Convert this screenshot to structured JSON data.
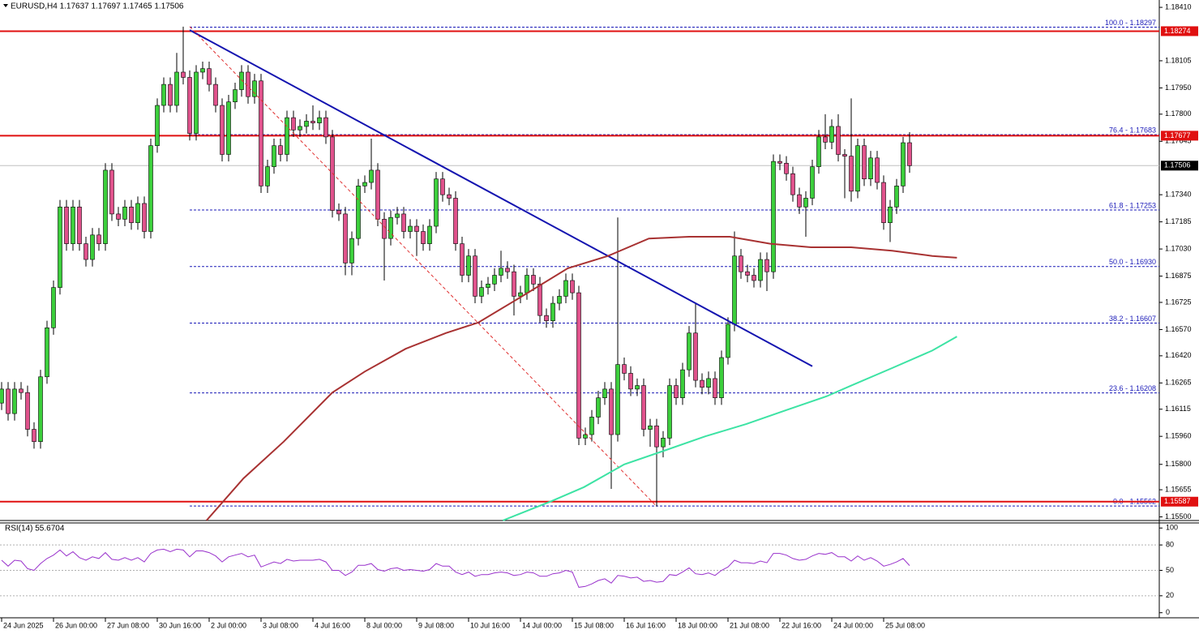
{
  "chart_data": [
    {
      "type": "candlestick",
      "title": "EURUSD,H4  1.17637 1.17697 1.17465 1.17506",
      "open": [
        1.1615,
        1.1623,
        1.1609,
        1.1623,
        1.1621,
        1.16,
        1.1593,
        1.163,
        1.1658,
        1.1681,
        1.1727,
        1.1706,
        1.1727,
        1.1706,
        1.1697,
        1.1711,
        1.1706,
        1.1748,
        1.1723,
        1.172,
        1.1727,
        1.1718,
        1.1729,
        1.1713,
        1.1762,
        1.1785,
        1.1797,
        1.1785,
        1.1804,
        1.1801,
        1.1769,
        1.1804,
        1.1806,
        1.1797,
        1.1785,
        1.1757,
        1.1787,
        1.1794,
        1.1804,
        1.179,
        1.1799,
        1.1739,
        1.175,
        1.1762,
        1.1757,
        1.1778,
        1.1771,
        1.1773,
        1.1776,
        1.1775,
        1.1778,
        1.1767,
        1.1725,
        1.1723,
        1.1695,
        1.1709,
        1.1739,
        1.1741,
        1.1748,
        1.172,
        1.1709,
        1.1721,
        1.1723,
        1.1713,
        1.1716,
        1.1713,
        1.1706,
        1.1716,
        1.1743,
        1.1734,
        1.1732,
        1.1706,
        1.1688,
        1.1699,
        1.1676,
        1.1681,
        1.1683,
        1.1688,
        1.1692,
        1.169,
        1.1676,
        1.1678,
        1.1688,
        1.1683,
        1.1665,
        1.1662,
        1.1672,
        1.1676,
        1.1685,
        1.1678,
        1.1595,
        1.1597,
        1.1607,
        1.1618,
        1.1623,
        1.1597,
        1.1637,
        1.1632,
        1.1623,
        1.1625,
        1.16,
        1.1602,
        1.159,
        1.1595,
        1.1625,
        1.1618,
        1.1634,
        1.1655,
        1.1628,
        1.1624,
        1.1629,
        1.1618,
        1.1641,
        1.166,
        1.1699,
        1.169,
        1.1688,
        1.1685,
        1.1697,
        1.169,
        1.1753,
        1.1752,
        1.1746,
        1.1734,
        1.1727,
        1.1732,
        1.175,
        1.1767,
        1.1764,
        1.1773,
        1.1757,
        1.1756,
        1.1736,
        1.1762,
        1.1743,
        1.1755,
        1.1741,
        1.1718,
        1.1727,
        1.1739,
        1.17637
      ],
      "high": [
        1.1627,
        1.1627,
        1.1627,
        1.1627,
        1.1625,
        1.1604,
        1.1634,
        1.1662,
        1.1685,
        1.1731,
        1.1731,
        1.1731,
        1.1731,
        1.171,
        1.1715,
        1.1715,
        1.1752,
        1.1752,
        1.1727,
        1.1731,
        1.1731,
        1.1733,
        1.1733,
        1.1766,
        1.1789,
        1.1801,
        1.1801,
        1.1815,
        1.183,
        1.1805,
        1.1808,
        1.181,
        1.181,
        1.1801,
        1.1789,
        1.1791,
        1.1798,
        1.1808,
        1.1808,
        1.1803,
        1.1803,
        1.1754,
        1.1766,
        1.1766,
        1.1782,
        1.1782,
        1.1777,
        1.178,
        1.1785,
        1.1782,
        1.1782,
        1.1771,
        1.1729,
        1.1727,
        1.1713,
        1.1743,
        1.1745,
        1.1766,
        1.1752,
        1.1724,
        1.1725,
        1.1727,
        1.1727,
        1.172,
        1.172,
        1.1717,
        1.172,
        1.1747,
        1.1747,
        1.1738,
        1.1736,
        1.171,
        1.1703,
        1.1703,
        1.1685,
        1.1687,
        1.1692,
        1.1702,
        1.1696,
        1.1694,
        1.1682,
        1.1692,
        1.1692,
        1.1687,
        1.1669,
        1.1676,
        1.168,
        1.1689,
        1.1689,
        1.1682,
        1.1601,
        1.1611,
        1.1622,
        1.1627,
        1.1627,
        1.1721,
        1.1641,
        1.1636,
        1.1629,
        1.1629,
        1.1606,
        1.1606,
        1.1599,
        1.1629,
        1.1629,
        1.1638,
        1.1659,
        1.1672,
        1.1632,
        1.1633,
        1.1633,
        1.1645,
        1.1664,
        1.1713,
        1.1703,
        1.1694,
        1.1692,
        1.1701,
        1.1701,
        1.1757,
        1.1757,
        1.1756,
        1.175,
        1.1738,
        1.1736,
        1.1754,
        1.1771,
        1.178,
        1.1777,
        1.178,
        1.176,
        1.1789,
        1.1766,
        1.1766,
        1.1759,
        1.1759,
        1.1745,
        1.1731,
        1.1743,
        1.1767,
        1.17697
      ],
      "low": [
        1.1611,
        1.1605,
        1.1605,
        1.1617,
        1.1596,
        1.1589,
        1.1589,
        1.1626,
        1.1654,
        1.1677,
        1.1702,
        1.1702,
        1.1702,
        1.1693,
        1.1693,
        1.1702,
        1.1702,
        1.1719,
        1.1716,
        1.1716,
        1.1714,
        1.1714,
        1.1709,
        1.1709,
        1.1758,
        1.1781,
        1.1781,
        1.1781,
        1.1797,
        1.1765,
        1.1765,
        1.18,
        1.1793,
        1.1781,
        1.1753,
        1.1753,
        1.1783,
        1.179,
        1.1786,
        1.1786,
        1.1735,
        1.1735,
        1.1746,
        1.1753,
        1.1753,
        1.1767,
        1.1767,
        1.1769,
        1.1771,
        1.1771,
        1.1763,
        1.1721,
        1.1719,
        1.1688,
        1.1688,
        1.1705,
        1.1735,
        1.1737,
        1.1716,
        1.1685,
        1.1705,
        1.1717,
        1.1709,
        1.1709,
        1.1699,
        1.1702,
        1.1702,
        1.1712,
        1.173,
        1.1728,
        1.1702,
        1.1684,
        1.1684,
        1.1672,
        1.1672,
        1.1677,
        1.1679,
        1.1684,
        1.1686,
        1.1665,
        1.1672,
        1.1674,
        1.1679,
        1.1661,
        1.1658,
        1.1658,
        1.1668,
        1.1672,
        1.1674,
        1.1591,
        1.1591,
        1.1593,
        1.1603,
        1.1614,
        1.1566,
        1.1593,
        1.1628,
        1.1619,
        1.1619,
        1.1596,
        1.159,
        1.1556,
        1.1584,
        1.1591,
        1.1614,
        1.1614,
        1.163,
        1.1624,
        1.162,
        1.162,
        1.1614,
        1.1614,
        1.1637,
        1.1656,
        1.1686,
        1.1684,
        1.1681,
        1.1681,
        1.1679,
        1.1686,
        1.1748,
        1.1742,
        1.173,
        1.1723,
        1.171,
        1.1728,
        1.1746,
        1.176,
        1.176,
        1.1753,
        1.1732,
        1.173,
        1.1732,
        1.1739,
        1.1739,
        1.1737,
        1.1714,
        1.1707,
        1.1723,
        1.1735,
        1.17465
      ],
      "close": [
        1.1623,
        1.1609,
        1.1623,
        1.1621,
        1.16,
        1.1593,
        1.163,
        1.1658,
        1.1681,
        1.1727,
        1.1706,
        1.1727,
        1.1706,
        1.1697,
        1.1711,
        1.1706,
        1.1748,
        1.1723,
        1.172,
        1.1727,
        1.1718,
        1.1729,
        1.1713,
        1.1762,
        1.1785,
        1.1797,
        1.1785,
        1.1804,
        1.1801,
        1.1769,
        1.1804,
        1.1806,
        1.1797,
        1.1785,
        1.1757,
        1.1787,
        1.1794,
        1.1804,
        1.179,
        1.1799,
        1.1739,
        1.175,
        1.1762,
        1.1757,
        1.1778,
        1.1771,
        1.1773,
        1.1776,
        1.1775,
        1.1778,
        1.1767,
        1.1725,
        1.1723,
        1.1695,
        1.1709,
        1.1739,
        1.1741,
        1.1748,
        1.172,
        1.1709,
        1.1721,
        1.1723,
        1.1713,
        1.1716,
        1.1713,
        1.1706,
        1.1716,
        1.1743,
        1.1734,
        1.1732,
        1.1706,
        1.1688,
        1.1699,
        1.1676,
        1.1681,
        1.1683,
        1.1688,
        1.1692,
        1.169,
        1.1676,
        1.1678,
        1.1688,
        1.1683,
        1.1665,
        1.1662,
        1.1672,
        1.1676,
        1.1685,
        1.1678,
        1.1595,
        1.1597,
        1.1607,
        1.1618,
        1.1623,
        1.1597,
        1.1637,
        1.1632,
        1.1623,
        1.1625,
        1.16,
        1.1602,
        1.159,
        1.1595,
        1.1625,
        1.1618,
        1.1634,
        1.1655,
        1.1628,
        1.1624,
        1.1629,
        1.1618,
        1.1641,
        1.166,
        1.1699,
        1.169,
        1.1688,
        1.1685,
        1.1697,
        1.169,
        1.1753,
        1.1752,
        1.1746,
        1.1734,
        1.1727,
        1.1732,
        1.175,
        1.1767,
        1.1764,
        1.1773,
        1.1757,
        1.1756,
        1.1736,
        1.1762,
        1.1743,
        1.1755,
        1.1741,
        1.1718,
        1.1727,
        1.1739,
        1.17637,
        1.17506
      ],
      "up_color": "#3ccf3c",
      "down_color": "#e0528c",
      "xlim": [
        -0.25,
        178.5
      ],
      "ylim": [
        1.15484,
        1.18452
      ],
      "yticks": [
        {
          "value": 1.1841,
          "label": "1.18410"
        },
        1.18105,
        {
          "value": 1.1795,
          "label": "1.17950"
        },
        {
          "value": 1.178,
          "label": "1.17800"
        },
        1.17645,
        {
          "value": 1.1734,
          "label": "1.17340"
        },
        1.17185,
        {
          "value": 1.1703,
          "label": "1.17030"
        },
        1.16875,
        1.16725,
        {
          "value": 1.1657,
          "label": "1.16570"
        },
        {
          "value": 1.1642,
          "label": "1.16420"
        },
        1.16265,
        1.16115,
        {
          "value": 1.1596,
          "label": "1.15960"
        },
        {
          "value": 1.158,
          "label": "1.15800"
        },
        1.15655,
        {
          "value": 1.155,
          "label": "1.15500"
        }
      ],
      "xticks": [
        {
          "value": 0,
          "label": "24 Jun 2025"
        },
        {
          "value": 8,
          "label": "26 Jun 00:00"
        },
        {
          "value": 16,
          "label": "27 Jun 08:00"
        },
        {
          "value": 24,
          "label": "30 Jun 16:00"
        },
        {
          "value": 32,
          "label": "2 Jul 00:00"
        },
        {
          "value": 40,
          "label": "3 Jul 08:00"
        },
        {
          "value": 48,
          "label": "4 Jul 16:00"
        },
        {
          "value": 56,
          "label": "8 Jul 00:00"
        },
        {
          "value": 64,
          "label": "9 Jul 08:00"
        },
        {
          "value": 72,
          "label": "10 Jul 16:00"
        },
        {
          "value": 80,
          "label": "14 Jul 00:00"
        },
        {
          "value": 88,
          "label": "15 Jul 08:00"
        },
        {
          "value": 96,
          "label": "16 Jul 16:00"
        },
        {
          "value": 104,
          "label": "18 Jul 00:00"
        },
        {
          "value": 112,
          "label": "21 Jul 08:00"
        },
        {
          "value": 120,
          "label": "22 Jul 16:00"
        },
        {
          "value": 128,
          "label": "24 Jul 00:00"
        },
        {
          "value": 136,
          "label": "25 Jul 08:00"
        }
      ],
      "levels": [
        {
          "value": 1.18274,
          "color": "#e01010"
        },
        {
          "value": 1.17677,
          "color": "#e01010"
        },
        {
          "value": 1.15587,
          "color": "#e01010"
        }
      ],
      "current_price": {
        "value": 1.17506,
        "color": "#000000"
      },
      "fibonacci": {
        "color": "#1a1ab8",
        "start": 29,
        "levels": [
          {
            "value": 1.18297,
            "label": "100.0 - 1.18297"
          },
          {
            "value": 1.17683,
            "label": "76.4 - 1.17683"
          },
          {
            "value": 1.17253,
            "label": "61.8 - 1.17253"
          },
          {
            "value": 1.1693,
            "label": "50.0 - 1.16930"
          },
          {
            "value": 1.16607,
            "label": "38.2 - 1.16607"
          },
          {
            "value": 1.16208,
            "label": "23.6 - 1.16208"
          },
          {
            "value": 1.15562,
            "label": "0.0 - 1.15562"
          }
        ]
      },
      "lines": [
        {
          "color": "#1414b0",
          "width": 2,
          "x": [
            29,
            125
          ],
          "values": [
            1.1828,
            1.1636
          ]
        },
        {
          "color": "#e03030",
          "width": 1,
          "dashed": true,
          "x": [
            29,
            101
          ],
          "values": [
            1.183,
            1.1556
          ]
        },
        {
          "color": "#a83232",
          "width": 2,
          "x": [
            31.6,
            37.3,
            43.5,
            51,
            56,
            62.3,
            68.5,
            73.5,
            79.8,
            87.3,
            93.5,
            99.8,
            106,
            112.3,
            118.5,
            124.8,
            131,
            137.3,
            143.5,
            147.3
          ],
          "values": [
            1.1548,
            1.1572,
            1.1593,
            1.1621,
            1.1633,
            1.1646,
            1.1655,
            1.1661,
            1.1675,
            1.1692,
            1.1699,
            1.1709,
            1.171,
            1.171,
            1.1706,
            1.1704,
            1.1704,
            1.1702,
            1.1699,
            1.1698
          ]
        },
        {
          "color": "#3de3a4",
          "width": 2,
          "x": [
            77.3,
            84.8,
            89.8,
            96,
            102.3,
            108.5,
            114.8,
            121,
            127.3,
            131,
            137.3,
            143.5,
            147.3
          ],
          "values": [
            1.1548,
            1.1559,
            1.1567,
            1.158,
            1.1588,
            1.1596,
            1.1603,
            1.1611,
            1.1619,
            1.1625,
            1.1635,
            1.1645,
            1.1653
          ]
        }
      ]
    },
    {
      "type": "line",
      "title": "RSI(14) 55.6704",
      "color": "#9932cc",
      "xlim": [
        -0.25,
        178.5
      ],
      "ylim": [
        -6,
        106
      ],
      "yticks": [
        0,
        20,
        50,
        80,
        100
      ],
      "values": [
        62,
        55,
        62,
        61,
        52,
        50,
        58,
        64,
        68,
        74,
        67,
        72,
        65,
        62,
        66,
        64,
        71,
        63,
        62,
        65,
        62,
        65,
        60,
        70,
        74,
        75,
        72,
        75,
        74,
        66,
        73,
        73,
        71,
        67,
        60,
        66,
        68,
        70,
        66,
        68,
        54,
        57,
        60,
        58,
        63,
        61,
        62,
        62,
        62,
        63,
        60,
        50,
        50,
        44,
        48,
        56,
        56,
        58,
        51,
        49,
        52,
        53,
        50,
        51,
        50,
        49,
        51,
        58,
        55,
        55,
        48,
        45,
        48,
        43,
        45,
        45,
        47,
        48,
        47,
        44,
        45,
        48,
        47,
        43,
        43,
        46,
        47,
        50,
        48,
        30,
        31,
        34,
        38,
        40,
        35,
        44,
        43,
        41,
        42,
        37,
        38,
        36,
        37,
        45,
        44,
        48,
        53,
        46,
        45,
        47,
        44,
        50,
        54,
        62,
        59,
        59,
        58,
        61,
        59,
        70,
        70,
        68,
        64,
        62,
        63,
        67,
        70,
        69,
        71,
        66,
        66,
        61,
        67,
        62,
        65,
        61,
        55,
        57,
        60,
        64,
        55.6704
      ]
    }
  ]
}
